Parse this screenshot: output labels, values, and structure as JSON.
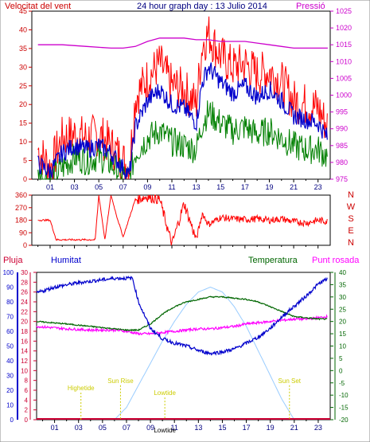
{
  "colors": {
    "wind_gust": "#ff0000",
    "wind_avg": "#0000cc",
    "wind_min": "#008000",
    "pressure": "#cc00cc",
    "direction": "#ff0000",
    "rain": "#cc0033",
    "humidity": "#0000cc",
    "temperature": "#006600",
    "dewpoint": "#ff00ff",
    "solar": "#99ccff",
    "axis": "#000000",
    "frame": "#888888"
  },
  "chart_data": [
    {
      "id": "wind",
      "type": "line",
      "title": "24 hour graph day : 13 Julio 2014",
      "left_title": "Velocitat del vent",
      "right_title": "Pressió",
      "y_left_ticks": [
        "0",
        "5",
        "10",
        "15",
        "20",
        "25",
        "30",
        "35",
        "40",
        "45"
      ],
      "y_left_range": [
        0,
        45
      ],
      "y_right_ticks": [
        "975",
        "980",
        "985",
        "990",
        "995",
        "1000",
        "1005",
        "1010",
        "1015",
        "1020",
        "1025"
      ],
      "y_right_range": [
        975,
        1025
      ],
      "x_range": [
        -0.5,
        24
      ],
      "x_ticks": [
        "01",
        "03",
        "05",
        "07",
        "09",
        "11",
        "13",
        "15",
        "17",
        "19",
        "21",
        "23"
      ],
      "series": [
        {
          "key": "gust",
          "color_key": "wind_gust",
          "x": [
            0,
            1,
            2,
            3,
            4,
            5,
            6,
            7,
            7.5,
            8,
            9,
            10,
            11,
            12,
            13,
            13.5,
            14,
            15,
            16,
            17,
            18,
            19,
            20,
            21,
            22,
            23,
            23.8
          ],
          "values": [
            8,
            3,
            11,
            12,
            11,
            12,
            9,
            5,
            3,
            22,
            27,
            31,
            25,
            24,
            20,
            36,
            39,
            33,
            30,
            31,
            28,
            29,
            26,
            21,
            20,
            19,
            14
          ]
        },
        {
          "key": "avg",
          "color_key": "wind_avg",
          "x": [
            0,
            1,
            2,
            3,
            4,
            5,
            6,
            7,
            7.5,
            8,
            9,
            10,
            11,
            12,
            13,
            13.5,
            14,
            15,
            16,
            17,
            18,
            19,
            20,
            21,
            22,
            23,
            23.8
          ],
          "values": [
            4,
            2,
            7,
            9,
            8,
            9,
            7,
            3,
            1,
            14,
            21,
            24,
            20,
            19,
            15,
            26,
            30,
            26,
            23,
            25,
            22,
            24,
            21,
            17,
            16,
            15,
            11
          ]
        },
        {
          "key": "min",
          "color_key": "wind_min",
          "x": [
            0,
            1,
            2,
            3,
            4,
            5,
            6,
            7,
            7.5,
            8,
            9,
            10,
            11,
            12,
            13,
            13.5,
            14,
            15,
            16,
            17,
            18,
            19,
            20,
            21,
            22,
            23,
            23.8
          ],
          "values": [
            1,
            0,
            3,
            6,
            5,
            6,
            4,
            1,
            0,
            7,
            11,
            13,
            10,
            9,
            8,
            15,
            18,
            15,
            13,
            14,
            12,
            13,
            11,
            9,
            8,
            8,
            6
          ]
        },
        {
          "key": "pressure",
          "axis": "right",
          "color_key": "pressure",
          "x": [
            0,
            2,
            4,
            6,
            7,
            8,
            9,
            10,
            11,
            12,
            13,
            14,
            15,
            16,
            17,
            18,
            19,
            20,
            21,
            22,
            23,
            23.8
          ],
          "values": [
            1015,
            1015,
            1014.5,
            1014,
            1014,
            1014.5,
            1016,
            1017,
            1017,
            1017,
            1016.5,
            1016.5,
            1016,
            1016,
            1016,
            1015.5,
            1015,
            1014.5,
            1014,
            1014,
            1014,
            1014
          ]
        }
      ]
    },
    {
      "id": "direction",
      "type": "scatter",
      "y_left_ticks": [
        "0",
        "90",
        "180",
        "270",
        "360"
      ],
      "y_left_range": [
        0,
        360
      ],
      "y_right_ticks": [
        "N",
        "W",
        "S",
        "E",
        "N"
      ],
      "x_range": [
        -0.5,
        24
      ],
      "series": [
        {
          "key": "dir",
          "color_key": "direction",
          "x": [
            0,
            1,
            1.5,
            2,
            3,
            4,
            4.7,
            5,
            5.5,
            6,
            6.5,
            7,
            8,
            9,
            10,
            11,
            12,
            13,
            13.5,
            14,
            15,
            16,
            17,
            18,
            19,
            20,
            21,
            22,
            23,
            23.8
          ],
          "values": [
            180,
            180,
            40,
            40,
            40,
            40,
            40,
            360,
            40,
            360,
            200,
            60,
            330,
            350,
            330,
            5,
            300,
            40,
            230,
            150,
            200,
            190,
            185,
            190,
            180,
            190,
            170,
            160,
            180,
            170
          ]
        }
      ]
    },
    {
      "id": "climate",
      "type": "line",
      "left_title_1": "Pluja",
      "left_title_2": "Humitat",
      "right_title_1": "Temperatura",
      "right_title_2": "Punt rosada",
      "y_left_range": [
        0,
        30
      ],
      "y_left_ticks": [
        "0",
        "2",
        "4",
        "6",
        "8",
        "10",
        "12",
        "14",
        "16",
        "18",
        "20",
        "22",
        "24",
        "26",
        "28",
        "30"
      ],
      "y_hum_ticks": [
        "0",
        "10",
        "20",
        "30",
        "40",
        "50",
        "60",
        "70",
        "80",
        "90",
        "100"
      ],
      "y_right_range": [
        -20,
        40
      ],
      "y_right_ticks": [
        "-20",
        "-15",
        "-10",
        "-5",
        "0",
        "5",
        "10",
        "15",
        "20",
        "25",
        "30",
        "35",
        "40"
      ],
      "x_range": [
        -0.5,
        24
      ],
      "x_ticks": [
        "01",
        "03",
        "05",
        "07",
        "09",
        "11",
        "13",
        "15",
        "17",
        "19",
        "21",
        "23"
      ],
      "annotations": [
        {
          "text": "Highetide",
          "x": 3.2,
          "y": -8
        },
        {
          "text": "Sun Rise",
          "x": 6.5,
          "y": -5
        },
        {
          "text": "Lowtide",
          "x": 10.2,
          "y": -10
        },
        {
          "text": "Sun Set",
          "x": 20.6,
          "y": -5
        },
        {
          "text": "Lowtide",
          "x": 10.2,
          "y": -26
        }
      ],
      "series": [
        {
          "key": "rain",
          "color_key": "rain",
          "x": [
            -0.5,
            24
          ],
          "values": [
            0,
            0
          ]
        },
        {
          "key": "humidity",
          "scale": "humidity",
          "color_key": "humidity",
          "x": [
            -0.5,
            1,
            3,
            5,
            6,
            7,
            7.5,
            8,
            9,
            10,
            11,
            12,
            13,
            14,
            15,
            16,
            17,
            18,
            19,
            20,
            21,
            22,
            23,
            23.8
          ],
          "values": [
            86,
            90,
            93,
            95,
            96,
            96,
            96,
            80,
            62,
            55,
            52,
            50,
            47,
            45,
            46,
            48,
            52,
            56,
            62,
            70,
            77,
            84,
            92,
            96
          ]
        },
        {
          "key": "temperature",
          "scale": "right",
          "color_key": "temperature",
          "x": [
            -0.5,
            2,
            4,
            6,
            7,
            8,
            9,
            10,
            11,
            12,
            13,
            14,
            15,
            16,
            17,
            18,
            19,
            20,
            21,
            22,
            23,
            23.8
          ],
          "values": [
            20,
            19,
            18,
            17,
            16.5,
            16.5,
            19,
            23,
            26,
            28,
            29,
            30,
            30,
            29.5,
            29,
            28,
            26,
            24,
            22,
            21.5,
            21,
            21
          ]
        },
        {
          "key": "dewpoint",
          "scale": "right",
          "color_key": "dewpoint",
          "x": [
            -0.5,
            2,
            4,
            6,
            7,
            8,
            9,
            10,
            11,
            12,
            13,
            14,
            15,
            16,
            17,
            18,
            19,
            20,
            21,
            22,
            23,
            23.8
          ],
          "values": [
            18,
            17,
            16.5,
            16.5,
            16,
            15,
            15,
            15.5,
            16,
            16.5,
            17,
            17,
            17.5,
            18,
            19,
            19.5,
            20,
            20.5,
            21,
            21,
            21.5,
            22
          ]
        },
        {
          "key": "solar",
          "scale": "right",
          "color_key": "solar",
          "x": [
            6,
            7,
            8,
            9,
            10,
            11,
            12,
            13,
            14,
            15,
            16,
            17,
            18,
            19,
            20,
            21
          ],
          "values": [
            -20,
            -15,
            -6,
            3,
            12,
            20,
            27,
            32,
            34,
            32,
            26,
            18,
            8,
            -2,
            -12,
            -20
          ]
        }
      ]
    }
  ]
}
